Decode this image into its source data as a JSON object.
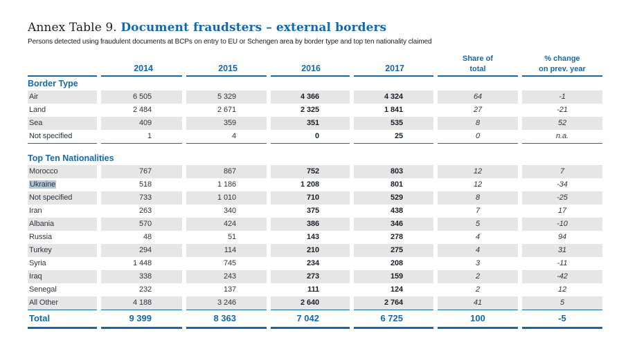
{
  "page": {
    "title_prefix": "Annex Table 9.",
    "title_main": "Document fraudsters – external borders",
    "subtitle": "Persons detected using fraudulent documents at BCPs on entry to EU or Schengen area by border type and top ten nationality claimed"
  },
  "colors": {
    "accent_blue": "#1568ad",
    "stripe_gray": "#e6e6e6",
    "selection_highlight": "#b5c8da",
    "text_dark": "#2c3540",
    "text_bold": "#17202b"
  },
  "table": {
    "columns": [
      {
        "label": ""
      },
      {
        "label": "2014"
      },
      {
        "label": "2015"
      },
      {
        "label": "2016"
      },
      {
        "label": "2017"
      },
      {
        "label": "Share of",
        "label2": "total"
      },
      {
        "label": "% change",
        "label2": "on prev. year"
      }
    ],
    "sections": [
      {
        "heading": "Border Type",
        "rows": [
          {
            "label": "Air",
            "values": [
              "6 505",
              "5 329",
              "4 366",
              "4 324",
              "64",
              "-1"
            ]
          },
          {
            "label": "Land",
            "values": [
              "2 484",
              "2 671",
              "2 325",
              "1 841",
              "27",
              "-21"
            ]
          },
          {
            "label": "Sea",
            "values": [
              "409",
              "359",
              "351",
              "535",
              "8",
              "52"
            ]
          },
          {
            "label": "Not specified",
            "values": [
              "1",
              "4",
              "0",
              "25",
              "0",
              "n.a."
            ]
          }
        ]
      },
      {
        "heading": "Top Ten Nationalities",
        "rows": [
          {
            "label": "Morocco",
            "values": [
              "767",
              "867",
              "752",
              "803",
              "12",
              "7"
            ]
          },
          {
            "label": "Ukraine",
            "values": [
              "518",
              "1 186",
              "1 208",
              "801",
              "12",
              "-34"
            ],
            "highlighted": true
          },
          {
            "label": "Not specified",
            "values": [
              "733",
              "1 010",
              "710",
              "529",
              "8",
              "-25"
            ]
          },
          {
            "label": "Iran",
            "values": [
              "263",
              "340",
              "375",
              "438",
              "7",
              "17"
            ]
          },
          {
            "label": "Albania",
            "values": [
              "570",
              "424",
              "386",
              "346",
              "5",
              "-10"
            ]
          },
          {
            "label": "Russia",
            "values": [
              "48",
              "51",
              "143",
              "278",
              "4",
              "94"
            ]
          },
          {
            "label": "Turkey",
            "values": [
              "294",
              "114",
              "210",
              "275",
              "4",
              "31"
            ]
          },
          {
            "label": "Syria",
            "values": [
              "1 448",
              "745",
              "234",
              "208",
              "3",
              "-11"
            ]
          },
          {
            "label": "Iraq",
            "values": [
              "338",
              "243",
              "273",
              "159",
              "2",
              "-42"
            ]
          },
          {
            "label": "Senegal",
            "values": [
              "232",
              "137",
              "111",
              "124",
              "2",
              "12"
            ]
          },
          {
            "label": "All Other",
            "values": [
              "4 188",
              "3 246",
              "2 640",
              "2 764",
              "41",
              "5"
            ]
          }
        ]
      }
    ],
    "total": {
      "label": "Total",
      "values": [
        "9 399",
        "8 363",
        "7 042",
        "6 725",
        "100",
        "-5"
      ]
    }
  }
}
